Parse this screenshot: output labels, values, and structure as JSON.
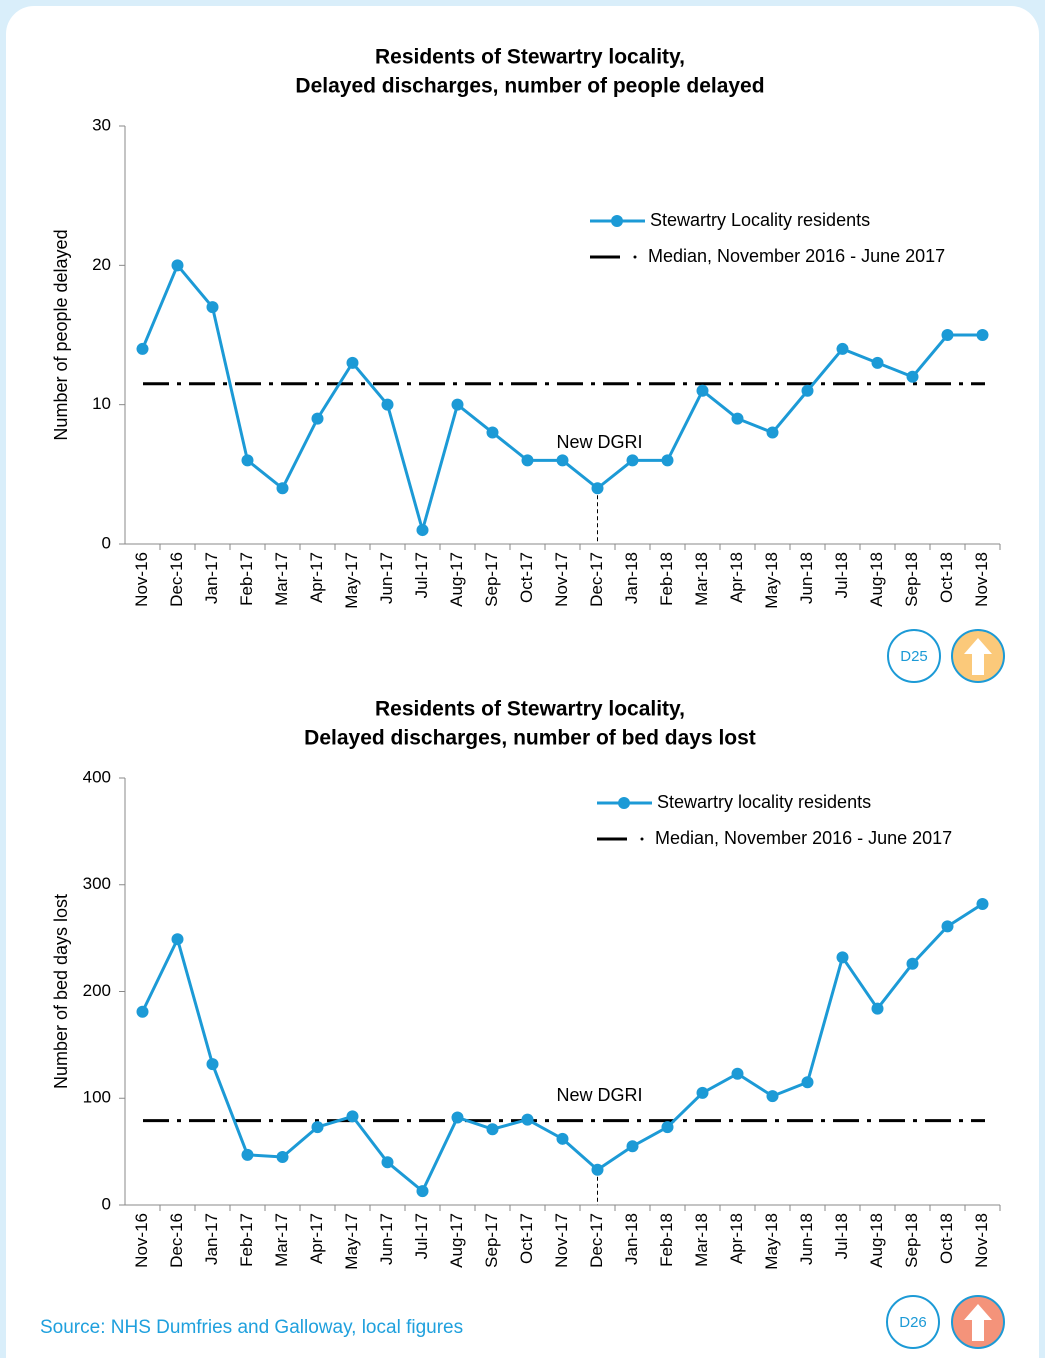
{
  "chart_data": [
    {
      "type": "line",
      "title": [
        "Residents of Stewartry locality,",
        "Delayed discharges, number of people delayed"
      ],
      "ylabel": "Number of people delayed",
      "categories": [
        "Nov-16",
        "Dec-16",
        "Jan-17",
        "Feb-17",
        "Mar-17",
        "Apr-17",
        "May-17",
        "Jun-17",
        "Jul-17",
        "Aug-17",
        "Sep-17",
        "Oct-17",
        "Nov-17",
        "Dec-17",
        "Jan-18",
        "Feb-18",
        "Mar-18",
        "Apr-18",
        "May-18",
        "Jun-18",
        "Jul-18",
        "Aug-18",
        "Sep-18",
        "Oct-18",
        "Nov-18"
      ],
      "series": [
        {
          "name": "Stewartry Locality residents",
          "color": "#1c9ad6",
          "values": [
            14,
            20,
            17,
            6,
            4,
            9,
            13,
            10,
            1,
            10,
            8,
            6,
            6,
            4,
            6,
            6,
            11,
            9,
            8,
            11,
            14,
            13,
            12,
            15,
            15
          ]
        }
      ],
      "median": {
        "name": "Median, November 2016 - June 2017",
        "value": 11.5,
        "color": "#000000"
      },
      "annotation": {
        "text": "New DGRI",
        "category": "Dec-17"
      },
      "ylim": [
        0,
        30
      ],
      "yticks": [
        0,
        10,
        20,
        30
      ],
      "badge": "D25"
    },
    {
      "type": "line",
      "title": [
        "Residents of Stewartry locality,",
        "Delayed discharges, number of bed days lost"
      ],
      "ylabel": "Number of bed days lost",
      "categories": [
        "Nov-16",
        "Dec-16",
        "Jan-17",
        "Feb-17",
        "Mar-17",
        "Apr-17",
        "May-17",
        "Jun-17",
        "Jul-17",
        "Aug-17",
        "Sep-17",
        "Oct-17",
        "Nov-17",
        "Dec-17",
        "Jan-18",
        "Feb-18",
        "Mar-18",
        "Apr-18",
        "May-18",
        "Jun-18",
        "Jul-18",
        "Aug-18",
        "Sep-18",
        "Oct-18",
        "Nov-18"
      ],
      "series": [
        {
          "name": "Stewartry locality residents",
          "color": "#1c9ad6",
          "values": [
            181,
            249,
            132,
            47,
            45,
            73,
            83,
            40,
            13,
            82,
            71,
            80,
            62,
            33,
            55,
            73,
            105,
            123,
            102,
            115,
            232,
            184,
            226,
            261,
            282
          ]
        }
      ],
      "median": {
        "name": "Median, November 2016 - June 2017",
        "value": 79,
        "color": "#000000"
      },
      "annotation": {
        "text": "New DGRI",
        "category": "Dec-17"
      },
      "ylim": [
        0,
        400
      ],
      "yticks": [
        0,
        100,
        200,
        300,
        400
      ],
      "badge": "D26"
    }
  ],
  "source": "Source: NHS Dumfries and Galloway, local figures"
}
